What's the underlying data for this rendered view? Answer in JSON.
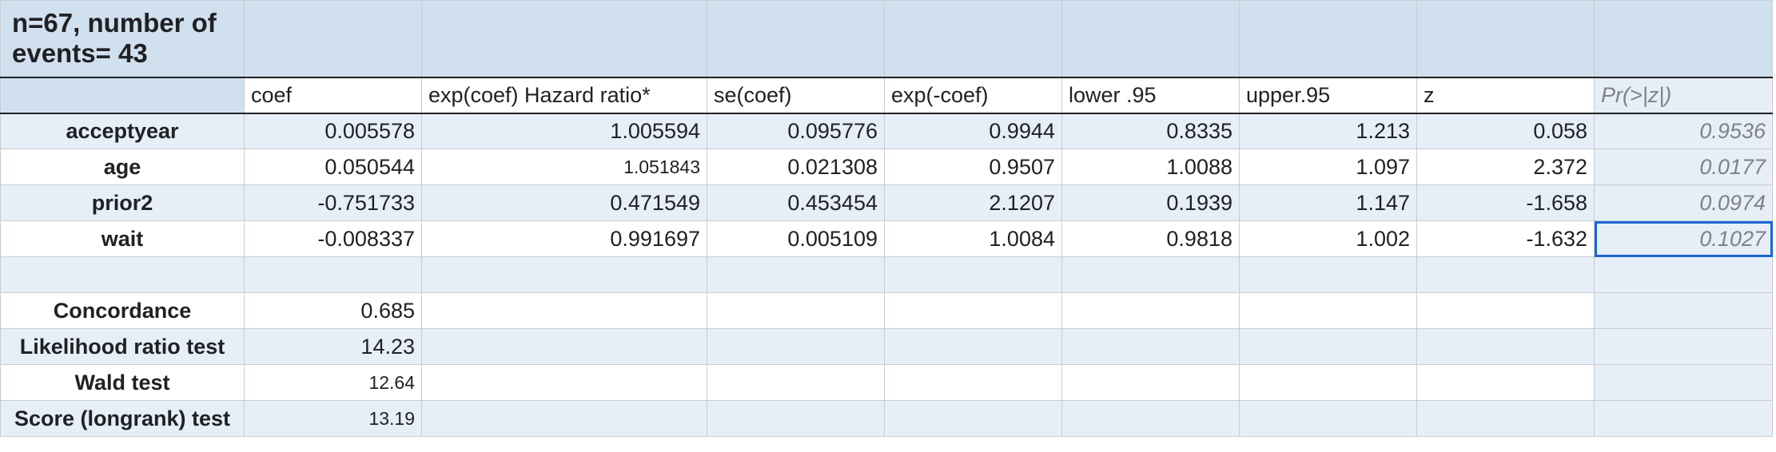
{
  "title": "n=67, number of events= 43",
  "headers": [
    "coef",
    "exp(coef) Hazard ratio*",
    "se(coef)",
    "exp(-coef)",
    "lower .95",
    "upper.95",
    "z",
    "Pr(>|z|)"
  ],
  "rows": [
    {
      "label": "acceptyear",
      "values": [
        "0.005578",
        "1.005594",
        "0.095776",
        "0.9944",
        "0.8335",
        "1.213",
        "0.058",
        "0.9536"
      ]
    },
    {
      "label": "age",
      "values": [
        "0.050544",
        "1.051843",
        "0.021308",
        "0.9507",
        "1.0088",
        "1.097",
        "2.372",
        "0.0177"
      ]
    },
    {
      "label": "prior2",
      "values": [
        "-0.751733",
        "0.471549",
        "0.453454",
        "2.1207",
        "0.1939",
        "1.147",
        "-1.658",
        "0.0974"
      ]
    },
    {
      "label": "wait",
      "values": [
        "-0.008337",
        "0.991697",
        "0.005109",
        "1.0084",
        "0.9818",
        "1.002",
        "-1.632",
        "0.1027"
      ]
    }
  ],
  "stats": [
    {
      "label": "Concordance",
      "value": "0.685"
    },
    {
      "label": "Likelihood ratio test",
      "value": "14.23"
    },
    {
      "label": "Wald test",
      "value": "12.64"
    },
    {
      "label": "Score (longrank) test",
      "value": "13.19"
    }
  ]
}
